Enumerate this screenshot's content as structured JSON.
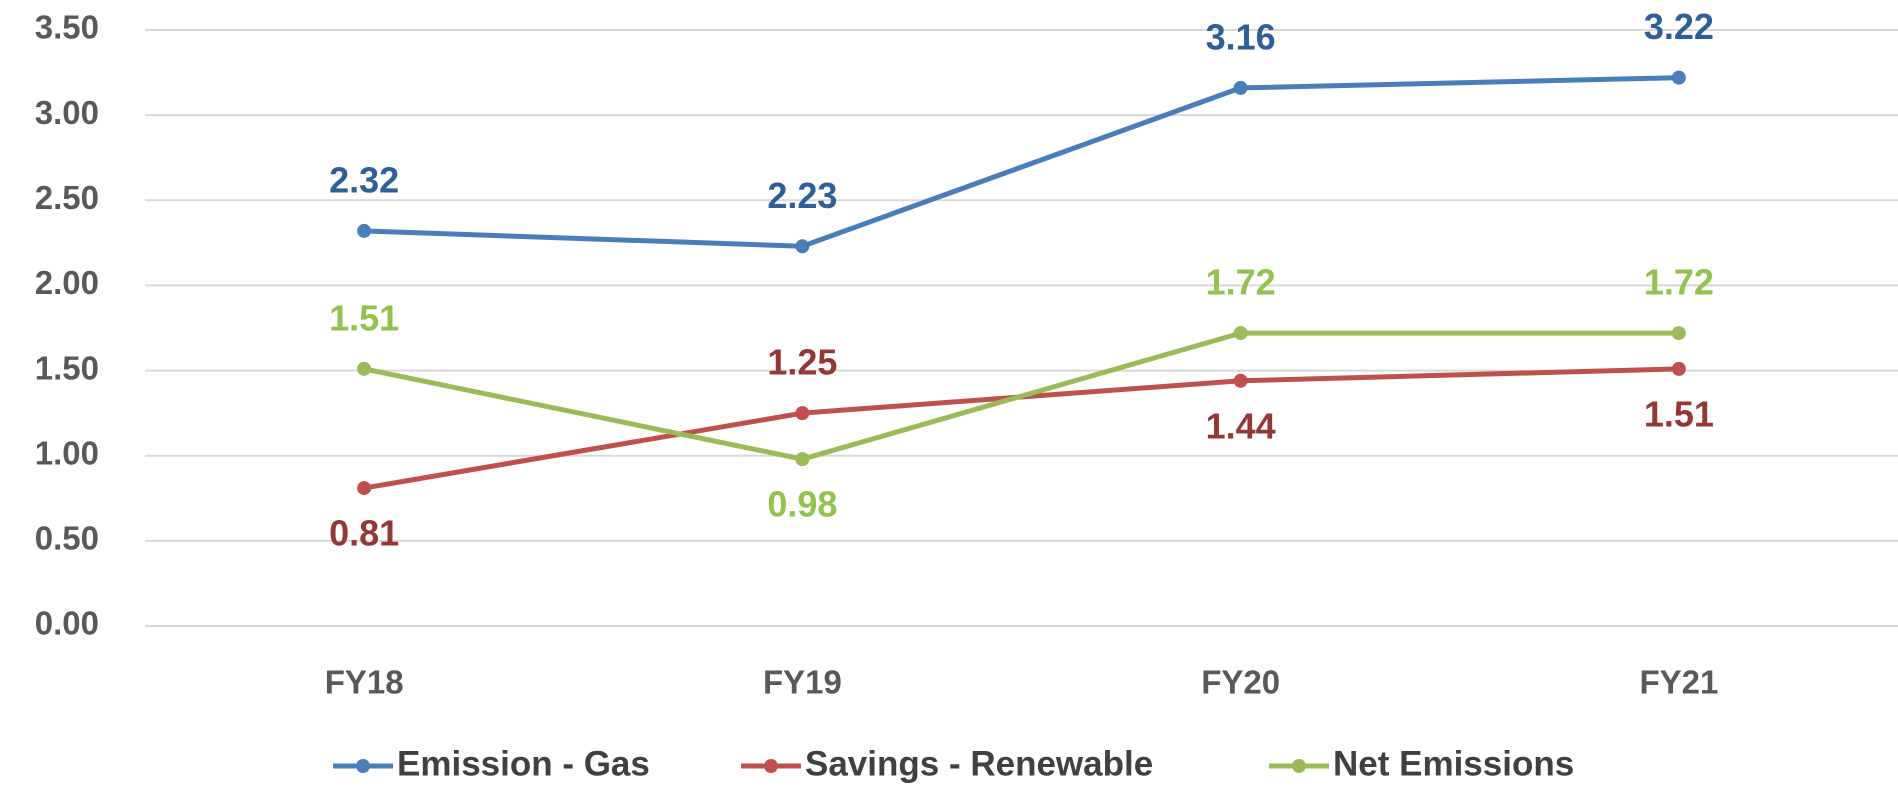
{
  "chart_data": {
    "type": "line",
    "categories": [
      "FY18",
      "FY19",
      "FY20",
      "FY21"
    ],
    "series": [
      {
        "name": "Emission - Gas",
        "color": "#4a7ebb",
        "label_color": "#2e5f99",
        "values": [
          2.32,
          2.23,
          3.16,
          3.22
        ]
      },
      {
        "name": "Savings - Renewable",
        "color": "#c0504d",
        "label_color": "#953735",
        "values": [
          0.81,
          1.25,
          1.44,
          1.51
        ]
      },
      {
        "name": "Net Emissions",
        "color": "#9bbb59",
        "label_color": "#92c34e",
        "values": [
          1.51,
          0.98,
          1.72,
          1.72
        ]
      }
    ],
    "ylim": [
      0,
      3.5
    ],
    "yticks": [
      {
        "value": 0,
        "label": "0.00"
      },
      {
        "value": 0.5,
        "label": "0.50"
      },
      {
        "value": 1,
        "label": "1.00"
      },
      {
        "value": 1.5,
        "label": "1.50"
      },
      {
        "value": 2,
        "label": "2.00"
      },
      {
        "value": 2.5,
        "label": "2.50"
      },
      {
        "value": 3,
        "label": "3.00"
      },
      {
        "value": 3.5,
        "label": "3.50"
      }
    ],
    "grid": true,
    "legend": "bottom"
  }
}
